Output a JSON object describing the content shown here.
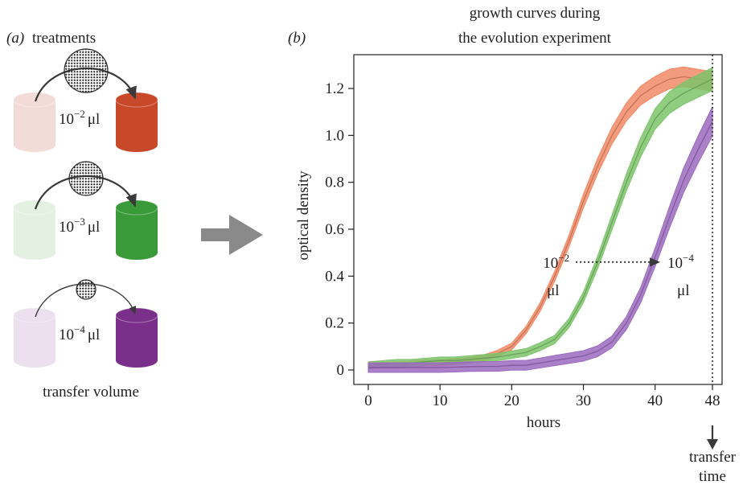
{
  "panel_a": {
    "label": "(a)",
    "title": "treatments",
    "treatments": [
      {
        "exponent": "−2",
        "unit": "μl",
        "color": "#c8492a",
        "faded": "#f3dcd8"
      },
      {
        "exponent": "−3",
        "unit": "μl",
        "color": "#3a9a3a",
        "faded": "#e4f1e2"
      },
      {
        "exponent": "−4",
        "unit": "μl",
        "color": "#7a2f8a",
        "faded": "#ece0ef"
      }
    ],
    "base": "10",
    "footer": "transfer volume"
  },
  "panel_b": {
    "label": "(b)",
    "title_line1": "growth curves during",
    "title_line2": "the evolution experiment",
    "transfer_line1": "transfer",
    "transfer_line2": "time"
  },
  "chart_data": {
    "type": "line",
    "xlabel": "hours",
    "ylabel": "optical density",
    "xlim": [
      0,
      48
    ],
    "ylim": [
      0,
      1.25
    ],
    "x_ticks": [
      0,
      10,
      20,
      30,
      40,
      48
    ],
    "y_ticks": [
      0,
      0.2,
      0.4,
      0.6,
      0.8,
      1.0,
      1.2
    ],
    "x_tick_labels": [
      "0",
      "10",
      "20",
      "30",
      "40",
      "48"
    ],
    "y_tick_labels": [
      "0",
      "0.2",
      "0.4",
      "0.6",
      "0.8",
      "1.0",
      "1.2"
    ],
    "grid": false,
    "vertical_marker_x": 48,
    "series": [
      {
        "color": "#f08a66",
        "band": 0.012,
        "x": [
          0,
          2,
          4,
          6,
          8,
          10,
          12,
          14,
          16,
          18,
          20,
          22,
          24,
          26,
          28,
          30,
          32,
          34,
          36,
          38,
          40,
          42,
          44,
          46,
          48
        ],
        "y": [
          0.02,
          0.02,
          0.02,
          0.025,
          0.03,
          0.03,
          0.035,
          0.04,
          0.05,
          0.07,
          0.1,
          0.17,
          0.27,
          0.4,
          0.55,
          0.72,
          0.87,
          1.0,
          1.1,
          1.17,
          1.21,
          1.24,
          1.25,
          1.24,
          1.23
        ]
      },
      {
        "color": "#7cc46a",
        "band": 0.014,
        "x": [
          0,
          2,
          4,
          6,
          8,
          10,
          12,
          14,
          16,
          18,
          20,
          22,
          24,
          26,
          28,
          30,
          32,
          34,
          36,
          38,
          40,
          42,
          44,
          46,
          48
        ],
        "y": [
          0.02,
          0.025,
          0.03,
          0.03,
          0.035,
          0.04,
          0.04,
          0.045,
          0.05,
          0.055,
          0.065,
          0.075,
          0.1,
          0.13,
          0.2,
          0.31,
          0.46,
          0.63,
          0.8,
          0.95,
          1.07,
          1.14,
          1.18,
          1.21,
          1.24
        ]
      },
      {
        "color": "#9b6bbf",
        "band": 0.02,
        "x": [
          0,
          2,
          4,
          6,
          8,
          10,
          12,
          14,
          16,
          18,
          20,
          22,
          24,
          26,
          28,
          30,
          32,
          34,
          36,
          38,
          40,
          42,
          44,
          46,
          48
        ],
        "y": [
          0.01,
          0.01,
          0.01,
          0.01,
          0.01,
          0.01,
          0.012,
          0.014,
          0.015,
          0.015,
          0.02,
          0.02,
          0.03,
          0.04,
          0.05,
          0.06,
          0.08,
          0.12,
          0.2,
          0.32,
          0.48,
          0.65,
          0.81,
          0.94,
          1.06
        ]
      }
    ],
    "annotations": [
      {
        "line1": "10",
        "sup": "−2",
        "line2": "μl",
        "x": 28.5,
        "y": 0.44
      },
      {
        "line1": "10",
        "sup": "−4",
        "line2": "μl",
        "x": 42,
        "y": 0.44
      }
    ],
    "arrow": {
      "from": [
        28.5,
        0.46
      ],
      "to": [
        41,
        0.46
      ]
    }
  }
}
